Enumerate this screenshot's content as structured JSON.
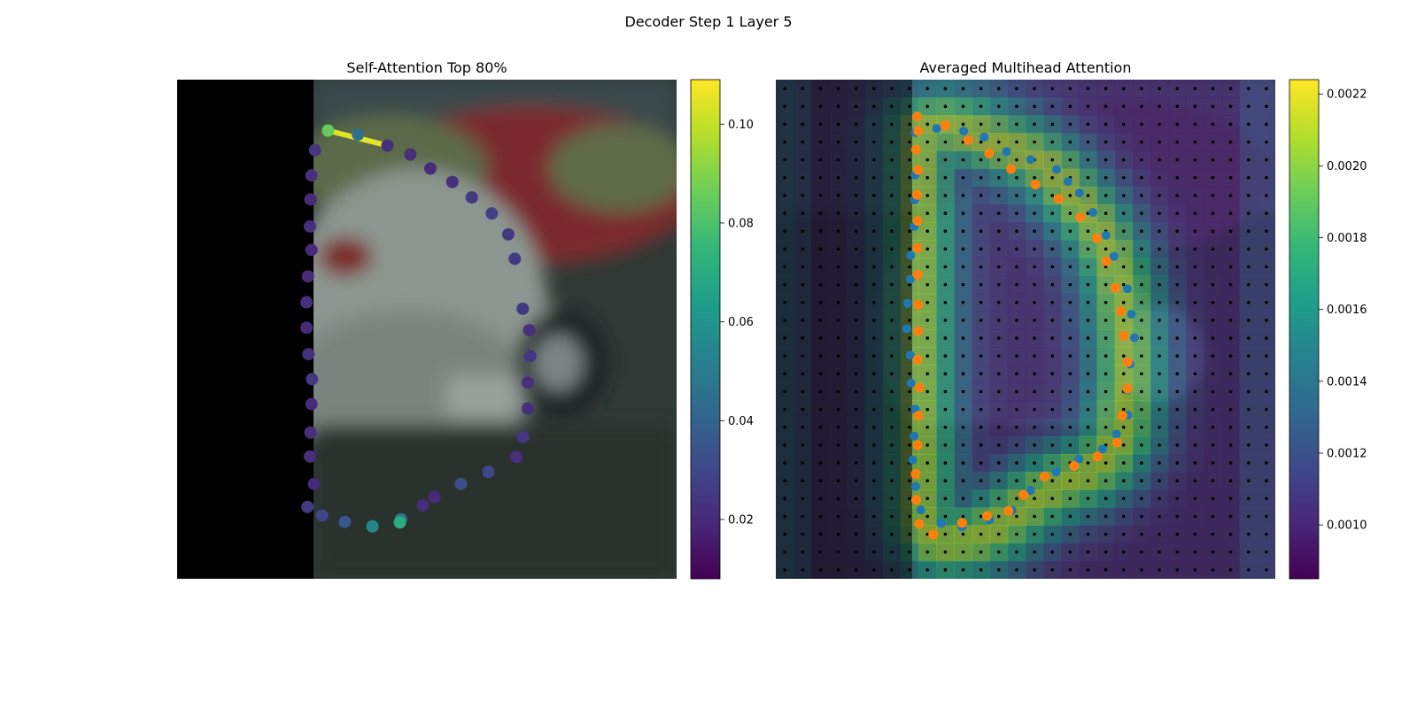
{
  "figure": {
    "suptitle": "Decoder Step 1 Layer 5"
  },
  "colors": {
    "viridis": [
      "#440154",
      "#482878",
      "#3e4989",
      "#31688e",
      "#26828e",
      "#1f9e89",
      "#35b779",
      "#6ece58",
      "#b5de2b",
      "#fde725"
    ],
    "query_points": "#1f77b4",
    "decoded_points": "#ff7f0e",
    "grid_points": "#000000",
    "photo_mask": "#000000"
  },
  "chart_data": [
    {
      "type": "scatter",
      "title": "Self-Attention Top 80%",
      "description_of_background": "camera image of parked cars, left ~27% masked black",
      "xlim": [
        0,
        100
      ],
      "ylim": [
        0,
        100
      ],
      "colorbar": {
        "vmin": 0.008,
        "vmax": 0.109,
        "ticks": [
          "0.02",
          "0.04",
          "0.06",
          "0.08",
          "0.10"
        ],
        "tick_values": [
          0.02,
          0.04,
          0.06,
          0.08,
          0.1
        ]
      },
      "points": [
        {
          "x": 30.2,
          "y": 10.2,
          "v": 0.085
        },
        {
          "x": 36.2,
          "y": 11.0,
          "v": 0.045
        },
        {
          "x": 42.1,
          "y": 13.2,
          "v": 0.022
        },
        {
          "x": 46.7,
          "y": 15.0,
          "v": 0.022
        },
        {
          "x": 50.7,
          "y": 17.8,
          "v": 0.02
        },
        {
          "x": 55.1,
          "y": 20.5,
          "v": 0.022
        },
        {
          "x": 59.0,
          "y": 23.6,
          "v": 0.025
        },
        {
          "x": 63.0,
          "y": 26.8,
          "v": 0.028
        },
        {
          "x": 66.3,
          "y": 31.0,
          "v": 0.025
        },
        {
          "x": 67.6,
          "y": 35.9,
          "v": 0.025
        },
        {
          "x": 69.2,
          "y": 45.9,
          "v": 0.025
        },
        {
          "x": 70.5,
          "y": 50.2,
          "v": 0.022
        },
        {
          "x": 70.7,
          "y": 55.4,
          "v": 0.024
        },
        {
          "x": 70.2,
          "y": 60.7,
          "v": 0.022
        },
        {
          "x": 70.2,
          "y": 65.9,
          "v": 0.022
        },
        {
          "x": 69.3,
          "y": 71.6,
          "v": 0.024
        },
        {
          "x": 67.9,
          "y": 75.6,
          "v": 0.022
        },
        {
          "x": 62.3,
          "y": 78.6,
          "v": 0.03
        },
        {
          "x": 56.8,
          "y": 81.0,
          "v": 0.032
        },
        {
          "x": 51.5,
          "y": 83.6,
          "v": 0.02
        },
        {
          "x": 49.2,
          "y": 85.3,
          "v": 0.022
        },
        {
          "x": 44.8,
          "y": 88.1,
          "v": 0.048
        },
        {
          "x": 44.6,
          "y": 88.7,
          "v": 0.07
        },
        {
          "x": 39.1,
          "y": 89.5,
          "v": 0.055
        },
        {
          "x": 33.6,
          "y": 88.6,
          "v": 0.036
        },
        {
          "x": 29.0,
          "y": 87.3,
          "v": 0.03
        },
        {
          "x": 26.1,
          "y": 85.6,
          "v": 0.026
        },
        {
          "x": 27.4,
          "y": 81.0,
          "v": 0.02
        },
        {
          "x": 26.6,
          "y": 75.5,
          "v": 0.022
        },
        {
          "x": 26.7,
          "y": 70.7,
          "v": 0.022
        },
        {
          "x": 26.9,
          "y": 65.0,
          "v": 0.02
        },
        {
          "x": 27.0,
          "y": 60.0,
          "v": 0.024
        },
        {
          "x": 26.3,
          "y": 55.0,
          "v": 0.022
        },
        {
          "x": 25.9,
          "y": 49.7,
          "v": 0.02
        },
        {
          "x": 25.9,
          "y": 44.6,
          "v": 0.022
        },
        {
          "x": 26.2,
          "y": 39.4,
          "v": 0.02
        },
        {
          "x": 26.9,
          "y": 34.1,
          "v": 0.02
        },
        {
          "x": 26.6,
          "y": 29.4,
          "v": 0.022
        },
        {
          "x": 26.7,
          "y": 24.0,
          "v": 0.02
        },
        {
          "x": 26.9,
          "y": 19.2,
          "v": 0.022
        },
        {
          "x": 27.6,
          "y": 14.1,
          "v": 0.024
        }
      ],
      "highlight_segment": {
        "from": [
          30.2,
          10.2
        ],
        "to": [
          42.1,
          13.2
        ],
        "v": 0.105
      }
    },
    {
      "type": "heatmap",
      "title": "Averaged Multihead Attention",
      "description_of_background": "camera image of parked cars overlaid with attention heatmap and grid of black sampling points",
      "grid_size": [
        28,
        28
      ],
      "colorbar": {
        "vmin": 0.00085,
        "vmax": 0.00224,
        "ticks": [
          "0.0010",
          "0.0012",
          "0.0014",
          "0.0016",
          "0.0018",
          "0.0020",
          "0.0022"
        ],
        "tick_values": [
          0.001,
          0.0012,
          0.0014,
          0.0016,
          0.0018,
          0.002,
          0.0022
        ]
      },
      "hot_curve": [
        [
          28.5,
          10
        ],
        [
          33,
          9
        ],
        [
          38,
          10
        ],
        [
          43,
          12
        ],
        [
          48,
          14
        ],
        [
          52,
          16
        ],
        [
          56,
          19
        ],
        [
          60,
          24
        ],
        [
          64,
          29
        ],
        [
          67,
          35
        ],
        [
          69,
          42
        ],
        [
          70,
          50
        ],
        [
          70.5,
          58
        ],
        [
          70,
          64
        ],
        [
          69,
          71
        ],
        [
          66,
          76
        ],
        [
          62,
          79
        ],
        [
          57,
          81
        ],
        [
          52,
          84
        ],
        [
          48,
          87
        ],
        [
          44,
          90
        ],
        [
          40,
          92
        ],
        [
          35,
          93
        ],
        [
          31,
          92
        ],
        [
          29,
          89
        ],
        [
          28.5,
          84
        ],
        [
          28.5,
          76
        ],
        [
          28.5,
          66
        ],
        [
          28.5,
          56
        ],
        [
          28.5,
          46
        ],
        [
          28.5,
          36
        ],
        [
          28.5,
          26
        ],
        [
          28.5,
          18
        ],
        [
          28.5,
          12
        ]
      ],
      "query_points": [
        [
          27.9,
          19.1
        ],
        [
          27.8,
          24.1
        ],
        [
          27.7,
          29.4
        ],
        [
          27.0,
          35.2
        ],
        [
          26.9,
          40.0
        ],
        [
          26.4,
          44.8
        ],
        [
          26.2,
          49.9
        ],
        [
          26.9,
          55.2
        ],
        [
          27.1,
          60.8
        ],
        [
          27.9,
          66.0
        ],
        [
          27.7,
          71.4
        ],
        [
          27.4,
          76.2
        ],
        [
          28.0,
          81.5
        ],
        [
          29.0,
          86.2
        ],
        [
          33.1,
          88.9
        ],
        [
          37.3,
          89.6
        ],
        [
          42.8,
          88.2
        ],
        [
          47.3,
          86.3
        ],
        [
          51.0,
          82.3
        ],
        [
          56.1,
          78.6
        ],
        [
          60.7,
          76.0
        ],
        [
          65.4,
          74.0
        ],
        [
          68.2,
          71.0
        ],
        [
          70.5,
          67.2
        ],
        [
          70.4,
          62.2
        ],
        [
          70.9,
          57.0
        ],
        [
          71.8,
          51.7
        ],
        [
          71.2,
          47.0
        ],
        [
          70.4,
          41.9
        ],
        [
          67.7,
          35.4
        ],
        [
          66.1,
          31.2
        ],
        [
          63.5,
          26.6
        ],
        [
          60.8,
          22.7
        ],
        [
          58.5,
          20.4
        ],
        [
          56.2,
          18.0
        ],
        [
          51.0,
          16.0
        ],
        [
          46.2,
          14.4
        ],
        [
          41.7,
          11.5
        ],
        [
          37.6,
          10.3
        ],
        [
          32.2,
          9.8
        ],
        [
          27.9,
          10.6
        ]
      ],
      "decoded_points": [
        [
          28.3,
          7.4
        ],
        [
          33.9,
          9.2
        ],
        [
          38.5,
          12.1
        ],
        [
          42.7,
          14.8
        ],
        [
          47.1,
          17.9
        ],
        [
          52.0,
          21.0
        ],
        [
          56.6,
          23.9
        ],
        [
          61.0,
          27.6
        ],
        [
          64.3,
          31.8
        ],
        [
          66.2,
          36.4
        ],
        [
          68.0,
          41.7
        ],
        [
          69.1,
          46.4
        ],
        [
          69.7,
          51.3
        ],
        [
          70.4,
          56.6
        ],
        [
          70.4,
          61.9
        ],
        [
          69.4,
          67.3
        ],
        [
          68.3,
          72.7
        ],
        [
          64.4,
          75.5
        ],
        [
          59.7,
          77.4
        ],
        [
          53.8,
          79.5
        ],
        [
          49.6,
          83.2
        ],
        [
          46.6,
          86.4
        ],
        [
          42.3,
          87.4
        ],
        [
          37.3,
          88.8
        ],
        [
          31.5,
          91.1
        ],
        [
          28.7,
          89.0
        ],
        [
          28.1,
          84.2
        ],
        [
          28.0,
          79.0
        ],
        [
          28.4,
          73.2
        ],
        [
          28.6,
          67.3
        ],
        [
          28.7,
          61.7
        ],
        [
          28.4,
          56.1
        ],
        [
          28.5,
          50.4
        ],
        [
          28.5,
          45.1
        ],
        [
          28.4,
          39.1
        ],
        [
          28.4,
          33.7
        ],
        [
          28.4,
          28.3
        ],
        [
          28.3,
          23.1
        ],
        [
          28.5,
          18.1
        ],
        [
          28.1,
          14.0
        ],
        [
          28.5,
          10.3
        ]
      ]
    }
  ]
}
